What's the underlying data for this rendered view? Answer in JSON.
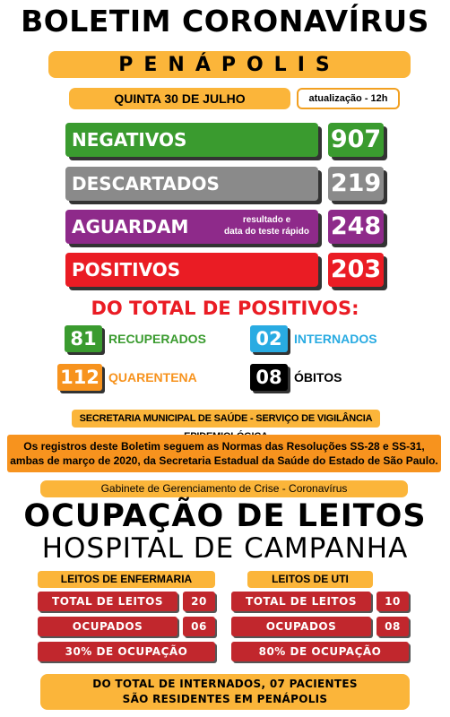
{
  "header": {
    "title": "BOLETIM CORONAVÍRUS",
    "city": "PENÁPOLIS",
    "date": "QUINTA 30 DE JULHO",
    "update": "atualização - 12h"
  },
  "stats": [
    {
      "label": "NEGATIVOS",
      "value": "907",
      "color": "#3a9b2f"
    },
    {
      "label": "DESCARTADOS",
      "value": "219",
      "color": "#8a8a8a"
    },
    {
      "label": "AGUARDAM",
      "note_line1": "resultado e",
      "note_line2": "data do teste rápido",
      "value": "248",
      "color": "#8e2a8a"
    },
    {
      "label": "POSITIVOS",
      "value": "203",
      "color": "#ea1c24"
    }
  ],
  "positives": {
    "heading": "DO TOTAL DE POSITIVOS:",
    "recuperados": {
      "value": "81",
      "label": "RECUPERADOS",
      "color": "#3a9b2f"
    },
    "internados": {
      "value": "02",
      "label": "INTERNADOS",
      "color": "#29abe2"
    },
    "quarentena": {
      "value": "112",
      "label": "QUARENTENA",
      "color": "#f7931e"
    },
    "obitos": {
      "value": "08",
      "label": "ÓBITOS",
      "color": "#000000"
    }
  },
  "secretaria": "SECRETARIA MUNICIPAL DE SAÚDE - SERVIÇO DE VIGILÂNCIA EPIDEMIOLÓGICA",
  "norms": {
    "line1": "Os registros deste Boletim seguem as Normas das Resoluções SS-28 e SS-31,",
    "line2": "ambas de março de 2020, da Secretaria Estadual da Saúde do Estado de São Paulo."
  },
  "gabinete": "Gabinete de Gerenciamento de Crise - Coronavírus",
  "occupancy": {
    "title": "OCUPAÇÃO DE LEITOS",
    "subtitle": "HOSPITAL DE CAMPANHA",
    "enfermaria": {
      "heading": "LEITOS DE ENFERMARIA",
      "total_label": "TOTAL DE LEITOS",
      "total_value": "20",
      "ocupados_label": "OCUPADOS",
      "ocupados_value": "06",
      "percent": "30% DE OCUPAÇÃO"
    },
    "uti": {
      "heading": "LEITOS DE UTI",
      "total_label": "TOTAL DE LEITOS",
      "total_value": "10",
      "ocupados_label": "OCUPADOS",
      "ocupados_value": "08",
      "percent": "80% DE OCUPAÇÃO"
    }
  },
  "footer": {
    "line1": "DO TOTAL DE INTERNADOS, 07 PACIENTES",
    "line2": "SÃO RESIDENTES EM PENÁPOLIS"
  }
}
